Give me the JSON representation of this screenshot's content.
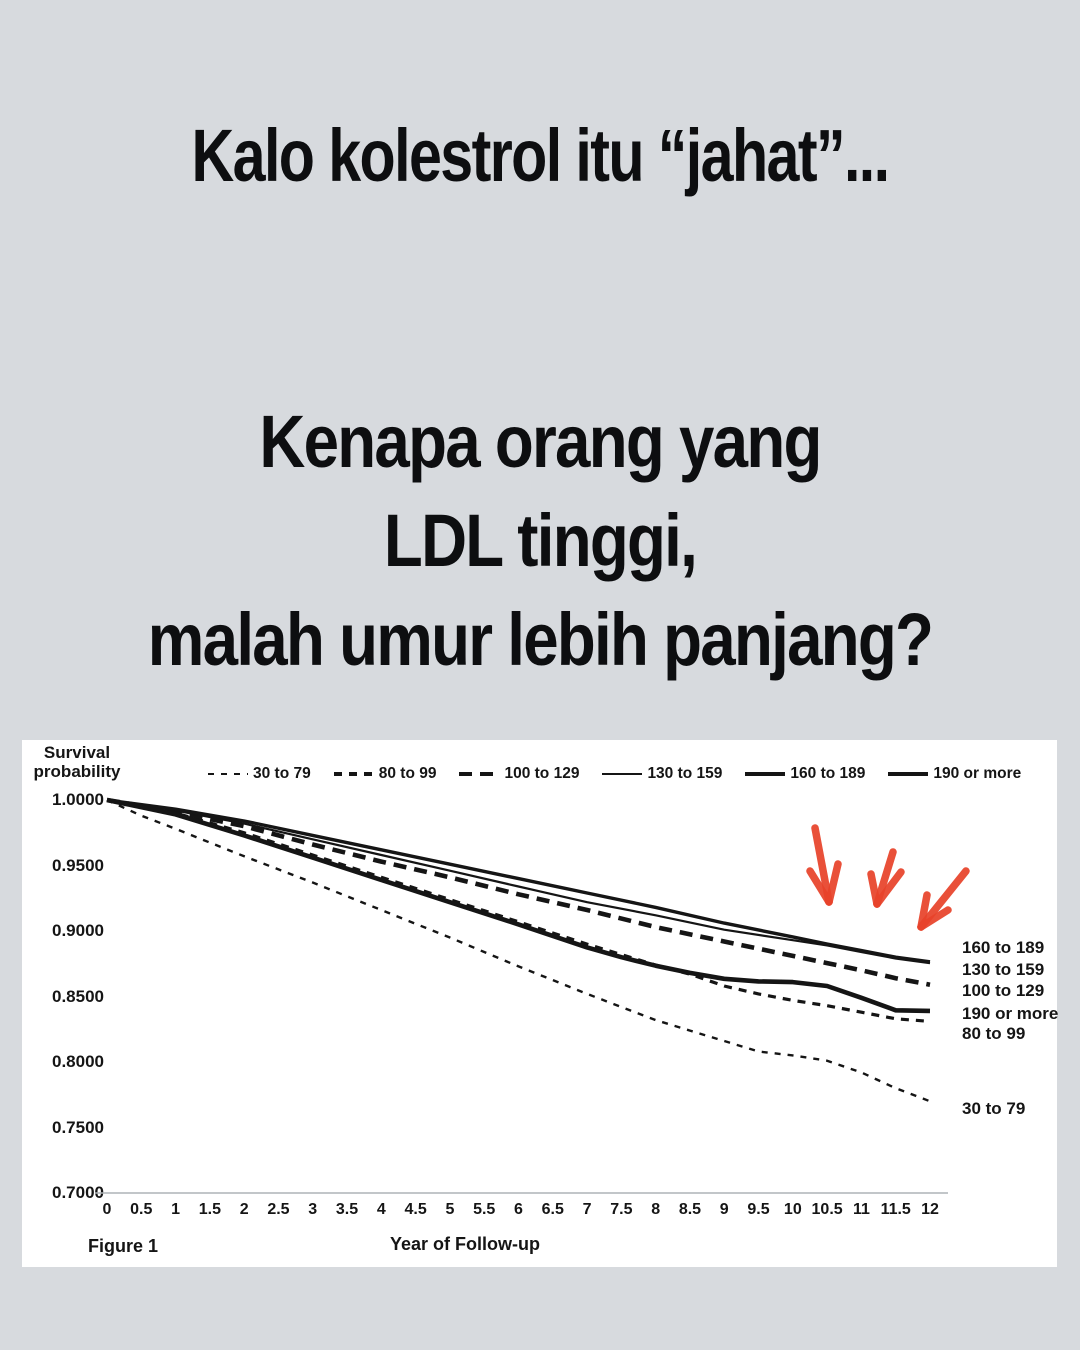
{
  "page": {
    "background_color": "#d7dade",
    "text_color": "#0d0e10"
  },
  "headings": {
    "top": "Kalo kolestrol itu “jahat”...",
    "q1": "Kenapa orang yang",
    "q2": "LDL tinggi,",
    "q3": "malah umur lebih panjang?"
  },
  "chart_data": {
    "type": "line",
    "ylabel": "Survival probability",
    "xlabel": "Year of Follow-up",
    "figure_caption": "Figure 1",
    "xlim": [
      0,
      12
    ],
    "ylim": [
      0.7,
      1.0
    ],
    "grid": false,
    "legend_position": "top",
    "line_color": "#151515",
    "axis_line_color": "#aeb3b7",
    "y_ticks": [
      {
        "label": "1.0000",
        "value": 1.0
      },
      {
        "label": "0.9500",
        "value": 0.95
      },
      {
        "label": "0.9000",
        "value": 0.9
      },
      {
        "label": "0.8500",
        "value": 0.85
      },
      {
        "label": "0.8000",
        "value": 0.8
      },
      {
        "label": "0.7500",
        "value": 0.75
      },
      {
        "label": "0.7000",
        "value": 0.7
      }
    ],
    "x_ticks": [
      "0",
      "0.5",
      "1",
      "1.5",
      "2",
      "2.5",
      "3",
      "3.5",
      "4",
      "4.5",
      "5",
      "5.5",
      "6",
      "6.5",
      "7",
      "7.5",
      "8",
      "8.5",
      "9",
      "9.5",
      "10",
      "10.5",
      "11",
      "11.5",
      "12"
    ],
    "series": [
      {
        "name": "30 to 79",
        "stroke_width": 2.4,
        "dash": [
          6,
          7
        ],
        "points": [
          [
            0,
            1.0
          ],
          [
            0.5,
            0.988
          ],
          [
            1,
            0.978
          ],
          [
            1.5,
            0.9675
          ],
          [
            2,
            0.957
          ],
          [
            2.5,
            0.947
          ],
          [
            3,
            0.937
          ],
          [
            3.5,
            0.9265
          ],
          [
            4,
            0.916
          ],
          [
            4.5,
            0.9055
          ],
          [
            5,
            0.895
          ],
          [
            5.5,
            0.884
          ],
          [
            6,
            0.873
          ],
          [
            6.5,
            0.8625
          ],
          [
            7,
            0.852
          ],
          [
            7.5,
            0.842
          ],
          [
            8,
            0.832
          ],
          [
            8.5,
            0.824
          ],
          [
            9,
            0.816
          ],
          [
            9.5,
            0.808
          ],
          [
            10,
            0.805
          ],
          [
            10.5,
            0.801
          ],
          [
            11,
            0.792
          ],
          [
            11.5,
            0.78
          ],
          [
            12,
            0.77
          ]
        ]
      },
      {
        "name": "80 to 99",
        "stroke_width": 3.2,
        "dash": [
          8,
          7
        ],
        "points": [
          [
            0,
            1.0
          ],
          [
            0.5,
            0.995
          ],
          [
            1,
            0.99
          ],
          [
            1.5,
            0.9825
          ],
          [
            2,
            0.975
          ],
          [
            2.5,
            0.9665
          ],
          [
            3,
            0.958
          ],
          [
            3.5,
            0.9495
          ],
          [
            4,
            0.941
          ],
          [
            4.5,
            0.9325
          ],
          [
            5,
            0.924
          ],
          [
            5.5,
            0.9155
          ],
          [
            6,
            0.907
          ],
          [
            6.5,
            0.8985
          ],
          [
            7,
            0.89
          ],
          [
            7.5,
            0.882
          ],
          [
            8,
            0.874
          ],
          [
            8.5,
            0.867
          ],
          [
            9,
            0.858
          ],
          [
            9.5,
            0.852
          ],
          [
            10,
            0.847
          ],
          [
            10.5,
            0.843
          ],
          [
            11,
            0.838
          ],
          [
            11.5,
            0.833
          ],
          [
            12,
            0.831
          ]
        ]
      },
      {
        "name": "100 to 129",
        "stroke_width": 4.6,
        "dash": [
          13,
          8
        ],
        "points": [
          [
            0,
            1.0
          ],
          [
            1,
            0.991
          ],
          [
            2,
            0.98
          ],
          [
            3,
            0.966
          ],
          [
            4,
            0.953
          ],
          [
            5,
            0.941
          ],
          [
            6,
            0.928
          ],
          [
            7,
            0.916
          ],
          [
            8,
            0.903
          ],
          [
            9,
            0.892
          ],
          [
            10,
            0.881
          ],
          [
            10.5,
            0.8755
          ],
          [
            11,
            0.87
          ],
          [
            11.5,
            0.864
          ],
          [
            12,
            0.859
          ]
        ]
      },
      {
        "name": "130 to 159",
        "stroke_width": 2.2,
        "dash": null,
        "points": [
          [
            0,
            1.0
          ],
          [
            1,
            0.992
          ],
          [
            2,
            0.982
          ],
          [
            3,
            0.97
          ],
          [
            4,
            0.958
          ],
          [
            5,
            0.946
          ],
          [
            6,
            0.934
          ],
          [
            7,
            0.922
          ],
          [
            8,
            0.912
          ],
          [
            9,
            0.901
          ],
          [
            10,
            0.893
          ],
          [
            10.5,
            0.889
          ],
          [
            11,
            0.884
          ],
          [
            11.5,
            0.879
          ],
          [
            12,
            0.8755
          ]
        ]
      },
      {
        "name": "160 to 189",
        "stroke_width": 3.4,
        "dash": null,
        "points": [
          [
            0,
            1.0
          ],
          [
            1,
            0.993
          ],
          [
            2,
            0.984
          ],
          [
            3,
            0.973
          ],
          [
            4,
            0.962
          ],
          [
            5,
            0.951
          ],
          [
            6,
            0.94
          ],
          [
            7,
            0.929
          ],
          [
            8,
            0.918
          ],
          [
            9,
            0.906
          ],
          [
            10,
            0.8955
          ],
          [
            10.5,
            0.89
          ],
          [
            11,
            0.885
          ],
          [
            11.5,
            0.88
          ],
          [
            12,
            0.8765
          ]
        ]
      },
      {
        "name": "190 or more",
        "stroke_width": 4.6,
        "dash": null,
        "points": [
          [
            0,
            1.0
          ],
          [
            1,
            0.989
          ],
          [
            2,
            0.973
          ],
          [
            3,
            0.956
          ],
          [
            4,
            0.939
          ],
          [
            5,
            0.922
          ],
          [
            6,
            0.905
          ],
          [
            7,
            0.8875
          ],
          [
            7.5,
            0.88
          ],
          [
            8,
            0.8735
          ],
          [
            8.5,
            0.868
          ],
          [
            9,
            0.8635
          ],
          [
            9.5,
            0.8615
          ],
          [
            10,
            0.861
          ],
          [
            10.5,
            0.858
          ],
          [
            11,
            0.849
          ],
          [
            11.5,
            0.8395
          ],
          [
            12,
            0.839
          ]
        ]
      }
    ],
    "right_labels": [
      {
        "text": "160 to 189",
        "v": 0.887
      },
      {
        "text": "130 to 159",
        "v": 0.87
      },
      {
        "text": "100 to 129",
        "v": 0.854
      },
      {
        "text": "190 or more",
        "v": 0.837
      },
      {
        "text": "80 to 99",
        "v": 0.8215
      },
      {
        "text": "30 to 79",
        "v": 0.764
      }
    ],
    "annotations": {
      "color": "#e8432b",
      "arrows": [
        {
          "shaft": [
            [
              793,
              88
            ],
            [
              807,
              162
            ]
          ],
          "barbs": [
            [
              788,
              131
            ],
            [
              816,
              124
            ]
          ]
        },
        {
          "shaft": [
            [
              871,
              112
            ],
            [
              855,
              164
            ]
          ],
          "barbs": [
            [
              849,
              134
            ],
            [
              879,
              132
            ]
          ]
        },
        {
          "shaft": [
            [
              944,
              131
            ],
            [
              899,
              187
            ]
          ],
          "barbs": [
            [
              905,
              155
            ],
            [
              926,
              170
            ]
          ]
        }
      ]
    }
  }
}
